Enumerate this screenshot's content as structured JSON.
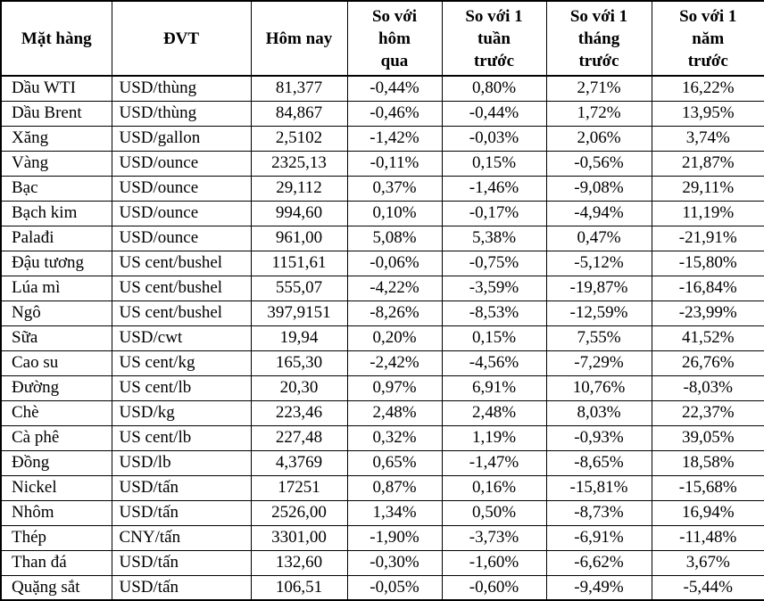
{
  "colors": {
    "text": "#000000",
    "border": "#000000",
    "background": "#ffffff"
  },
  "table": {
    "columns": [
      {
        "key": "name",
        "label": "Mặt hàng"
      },
      {
        "key": "unit",
        "label": "ĐVT"
      },
      {
        "key": "today",
        "label": "Hôm nay"
      },
      {
        "key": "vs_yesterday",
        "label": "So với\nhôm\nqua"
      },
      {
        "key": "vs_1_week",
        "label": "So với 1\ntuần\ntrước"
      },
      {
        "key": "vs_1_month",
        "label": "So với 1\ntháng\ntrước"
      },
      {
        "key": "vs_1_year",
        "label": "So với 1\nnăm\ntrước"
      }
    ],
    "rows": [
      [
        "Dầu WTI",
        "USD/thùng",
        "81,377",
        "-0,44%",
        "0,80%",
        "2,71%",
        "16,22%"
      ],
      [
        "Dầu Brent",
        "USD/thùng",
        "84,867",
        "-0,46%",
        "-0,44%",
        "1,72%",
        "13,95%"
      ],
      [
        "Xăng",
        "USD/gallon",
        "2,5102",
        "-1,42%",
        "-0,03%",
        "2,06%",
        "3,74%"
      ],
      [
        "Vàng",
        "USD/ounce",
        "2325,13",
        "-0,11%",
        "0,15%",
        "-0,56%",
        "21,87%"
      ],
      [
        "Bạc",
        "USD/ounce",
        "29,112",
        "0,37%",
        "-1,46%",
        "-9,08%",
        "29,11%"
      ],
      [
        "Bạch kim",
        "USD/ounce",
        "994,60",
        "0,10%",
        "-0,17%",
        "-4,94%",
        "11,19%"
      ],
      [
        "Palađi",
        "USD/ounce",
        "961,00",
        "5,08%",
        "5,38%",
        "0,47%",
        "-21,91%"
      ],
      [
        "Đậu tương",
        "US cent/bushel",
        "1151,61",
        "-0,06%",
        "-0,75%",
        "-5,12%",
        "-15,80%"
      ],
      [
        "Lúa mì",
        "US cent/bushel",
        "555,07",
        "-4,22%",
        "-3,59%",
        "-19,87%",
        "-16,84%"
      ],
      [
        "Ngô",
        "US cent/bushel",
        "397,9151",
        "-8,26%",
        "-8,53%",
        "-12,59%",
        "-23,99%"
      ],
      [
        "Sữa",
        "USD/cwt",
        "19,94",
        "0,20%",
        "0,15%",
        "7,55%",
        "41,52%"
      ],
      [
        "Cao su",
        "US cent/kg",
        "165,30",
        "-2,42%",
        "-4,56%",
        "-7,29%",
        "26,76%"
      ],
      [
        "Đường",
        "US cent/lb",
        "20,30",
        "0,97%",
        "6,91%",
        "10,76%",
        "-8,03%"
      ],
      [
        "Chè",
        "USD/kg",
        "223,46",
        "2,48%",
        "2,48%",
        "8,03%",
        "22,37%"
      ],
      [
        "Cà phê",
        "US cent/lb",
        "227,48",
        "0,32%",
        "1,19%",
        "-0,93%",
        "39,05%"
      ],
      [
        "Đồng",
        "USD/lb",
        "4,3769",
        "0,65%",
        "-1,47%",
        "-8,65%",
        "18,58%"
      ],
      [
        "Nickel",
        "USD/tấn",
        "17251",
        "0,87%",
        "0,16%",
        "-15,81%",
        "-15,68%"
      ],
      [
        "Nhôm",
        "USD/tấn",
        "2526,00",
        "1,34%",
        "0,50%",
        "-8,73%",
        "16,94%"
      ],
      [
        "Thép",
        "CNY/tấn",
        "3301,00",
        "-1,90%",
        "-3,73%",
        "-6,91%",
        "-11,48%"
      ],
      [
        "Than đá",
        "USD/tấn",
        "132,60",
        "-0,30%",
        "-1,60%",
        "-6,62%",
        "3,67%"
      ],
      [
        "Quặng sắt",
        "USD/tấn",
        "106,51",
        "-0,05%",
        "-0,60%",
        "-9,49%",
        "-5,44%"
      ]
    ]
  }
}
